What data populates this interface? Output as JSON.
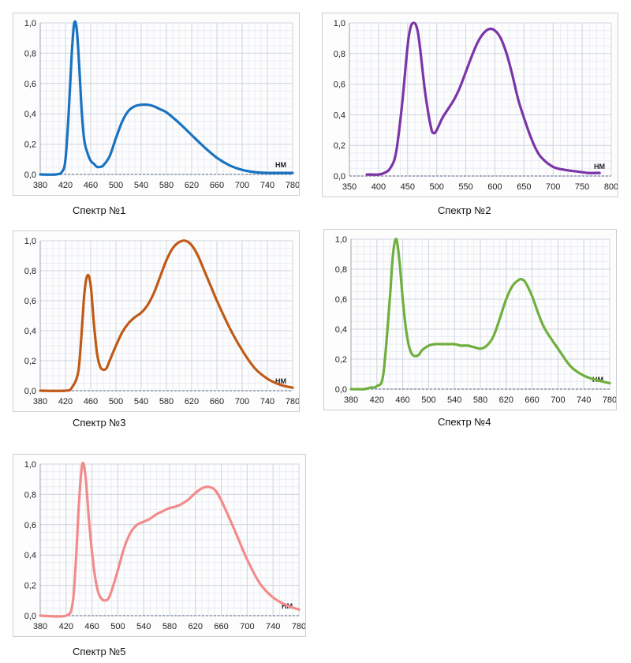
{
  "chart_data": [
    {
      "type": "line",
      "title": "Спектр №1",
      "unit": "нм",
      "color": "#1a73c0",
      "xlim": [
        380,
        780
      ],
      "ylim": [
        0,
        1
      ],
      "xticks": [
        380,
        420,
        460,
        500,
        540,
        580,
        620,
        660,
        700,
        740,
        780
      ],
      "yticks": [
        0,
        0.2,
        0.4,
        0.6,
        0.8,
        1.0
      ],
      "ytick_labels": [
        "0,0",
        "0,2",
        "0,4",
        "0,6",
        "0,8",
        "1,0"
      ],
      "x": [
        380,
        405,
        415,
        420,
        425,
        430,
        434,
        438,
        442,
        446,
        450,
        455,
        460,
        465,
        470,
        475,
        480,
        490,
        500,
        510,
        520,
        530,
        540,
        550,
        560,
        570,
        580,
        600,
        620,
        640,
        660,
        680,
        700,
        720,
        740,
        760,
        780
      ],
      "y": [
        0.0,
        0.0,
        0.02,
        0.1,
        0.4,
        0.8,
        1.0,
        0.95,
        0.7,
        0.4,
        0.22,
        0.14,
        0.09,
        0.07,
        0.05,
        0.05,
        0.06,
        0.12,
        0.24,
        0.35,
        0.42,
        0.45,
        0.46,
        0.46,
        0.45,
        0.43,
        0.41,
        0.34,
        0.26,
        0.18,
        0.11,
        0.06,
        0.03,
        0.015,
        0.01,
        0.01,
        0.01
      ]
    },
    {
      "type": "line",
      "title": "Спектр №2",
      "unit": "нм",
      "color": "#7b35a8",
      "xlim": [
        350,
        800
      ],
      "ylim": [
        0,
        1
      ],
      "xticks": [
        350,
        400,
        450,
        500,
        550,
        600,
        650,
        700,
        750,
        800
      ],
      "yticks": [
        0,
        0.2,
        0.4,
        0.6,
        0.8,
        1.0
      ],
      "ytick_labels": [
        "0,0",
        "0,2",
        "0,4",
        "0,6",
        "0,8",
        "1,0"
      ],
      "x": [
        380,
        400,
        410,
        420,
        430,
        440,
        450,
        455,
        460,
        465,
        470,
        480,
        490,
        495,
        500,
        510,
        520,
        530,
        540,
        550,
        560,
        570,
        580,
        590,
        600,
        610,
        620,
        630,
        640,
        650,
        660,
        670,
        680,
        700,
        720,
        740,
        760,
        780
      ],
      "y": [
        0.01,
        0.01,
        0.02,
        0.05,
        0.15,
        0.45,
        0.85,
        0.97,
        1.0,
        0.98,
        0.88,
        0.55,
        0.32,
        0.28,
        0.3,
        0.38,
        0.44,
        0.5,
        0.58,
        0.68,
        0.78,
        0.87,
        0.93,
        0.96,
        0.95,
        0.9,
        0.8,
        0.66,
        0.5,
        0.38,
        0.27,
        0.18,
        0.12,
        0.06,
        0.04,
        0.03,
        0.02,
        0.02
      ]
    },
    {
      "type": "line",
      "title": "Спектр №3",
      "unit": "нм",
      "color": "#c05a18",
      "xlim": [
        380,
        780
      ],
      "ylim": [
        0,
        1
      ],
      "xticks": [
        380,
        420,
        460,
        500,
        540,
        580,
        620,
        660,
        700,
        740,
        780
      ],
      "yticks": [
        0,
        0.2,
        0.4,
        0.6,
        0.8,
        1.0
      ],
      "ytick_labels": [
        "0,0",
        "0,2",
        "0,4",
        "0,6",
        "0,8",
        "1,0"
      ],
      "x": [
        380,
        420,
        430,
        440,
        445,
        450,
        455,
        460,
        465,
        470,
        475,
        480,
        485,
        490,
        500,
        510,
        520,
        530,
        540,
        550,
        560,
        570,
        580,
        590,
        600,
        610,
        620,
        630,
        640,
        650,
        660,
        680,
        700,
        720,
        740,
        760,
        780
      ],
      "y": [
        0.0,
        0.0,
        0.02,
        0.12,
        0.35,
        0.65,
        0.77,
        0.7,
        0.45,
        0.25,
        0.16,
        0.14,
        0.15,
        0.2,
        0.3,
        0.39,
        0.45,
        0.49,
        0.52,
        0.57,
        0.65,
        0.76,
        0.87,
        0.95,
        0.99,
        1.0,
        0.97,
        0.9,
        0.8,
        0.7,
        0.6,
        0.42,
        0.27,
        0.15,
        0.08,
        0.04,
        0.02
      ]
    },
    {
      "type": "line",
      "title": "Спектр №4",
      "unit": "нм",
      "color": "#6faf3e",
      "xlim": [
        380,
        780
      ],
      "ylim": [
        0,
        1
      ],
      "xticks": [
        380,
        420,
        460,
        500,
        540,
        580,
        620,
        660,
        700,
        740,
        780
      ],
      "yticks": [
        0,
        0.2,
        0.4,
        0.6,
        0.8,
        1.0
      ],
      "ytick_labels": [
        "0,0",
        "0,2",
        "0,4",
        "0,6",
        "0,8",
        "1,0"
      ],
      "x": [
        380,
        400,
        410,
        420,
        430,
        440,
        445,
        450,
        455,
        460,
        465,
        470,
        475,
        480,
        485,
        490,
        500,
        510,
        520,
        530,
        540,
        550,
        560,
        570,
        580,
        590,
        600,
        610,
        620,
        630,
        640,
        645,
        650,
        660,
        670,
        680,
        700,
        720,
        740,
        760,
        780
      ],
      "y": [
        0.0,
        0.0,
        0.01,
        0.02,
        0.1,
        0.6,
        0.9,
        1.0,
        0.85,
        0.6,
        0.4,
        0.28,
        0.23,
        0.22,
        0.23,
        0.26,
        0.29,
        0.3,
        0.3,
        0.3,
        0.3,
        0.29,
        0.29,
        0.28,
        0.27,
        0.29,
        0.35,
        0.47,
        0.6,
        0.69,
        0.73,
        0.73,
        0.71,
        0.62,
        0.5,
        0.4,
        0.27,
        0.15,
        0.09,
        0.06,
        0.04
      ]
    },
    {
      "type": "line",
      "title": "Спектр №5",
      "unit": "нм",
      "color": "#f28b8b",
      "xlim": [
        380,
        780
      ],
      "ylim": [
        0,
        1
      ],
      "xticks": [
        380,
        420,
        460,
        500,
        540,
        580,
        620,
        660,
        700,
        740,
        780
      ],
      "yticks": [
        0,
        0.2,
        0.4,
        0.6,
        0.8,
        1.0
      ],
      "ytick_labels": [
        "0,0",
        "0,2",
        "0,4",
        "0,6",
        "0,8",
        "1,0"
      ],
      "x": [
        380,
        420,
        430,
        435,
        440,
        445,
        450,
        455,
        460,
        465,
        470,
        475,
        480,
        485,
        490,
        500,
        510,
        520,
        530,
        540,
        550,
        560,
        570,
        580,
        590,
        600,
        610,
        620,
        630,
        640,
        650,
        660,
        680,
        700,
        720,
        740,
        760,
        780
      ],
      "y": [
        0.0,
        0.0,
        0.08,
        0.35,
        0.75,
        1.0,
        0.92,
        0.65,
        0.42,
        0.25,
        0.15,
        0.11,
        0.1,
        0.11,
        0.16,
        0.3,
        0.45,
        0.55,
        0.6,
        0.62,
        0.64,
        0.67,
        0.69,
        0.71,
        0.72,
        0.74,
        0.77,
        0.81,
        0.84,
        0.85,
        0.83,
        0.76,
        0.57,
        0.37,
        0.21,
        0.12,
        0.07,
        0.04
      ]
    }
  ]
}
